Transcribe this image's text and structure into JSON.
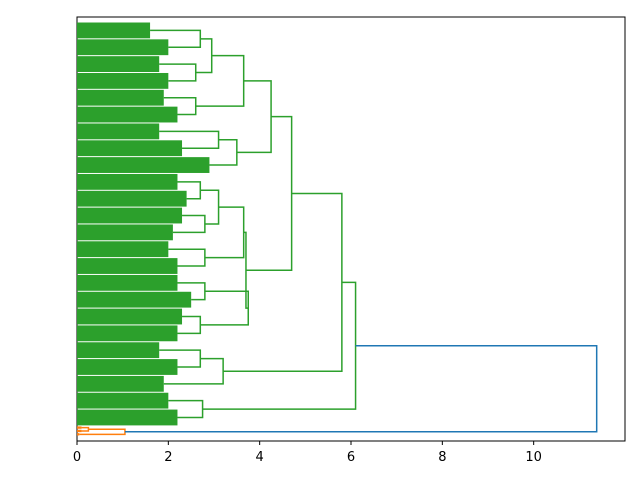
{
  "chart_data": {
    "type": "dendrogram",
    "xlim": [
      0,
      12
    ],
    "xticks": [
      0,
      2,
      4,
      6,
      8,
      10
    ],
    "tree": {
      "height": 11.38,
      "color": "#1f77b4",
      "children": [
        {
          "height": 6.1,
          "color": "#2ca02c",
          "children": [
            {
              "height": 5.8,
              "children": [
                {
                  "height": 4.7,
                  "children": [
                    {
                      "height": 4.25,
                      "children": [
                        {
                          "height": 3.65,
                          "children": [
                            {
                              "height": 2.95,
                              "children": [
                                {
                                  "height": 2.7,
                                  "children": [
                                    {
                                      "height": 1.6,
                                      "n": 10
                                    },
                                    {
                                      "height": 2.0,
                                      "n": 10
                                    }
                                  ]
                                },
                                {
                                  "height": 2.6,
                                  "children": [
                                    {
                                      "height": 1.8,
                                      "n": 10
                                    },
                                    {
                                      "height": 2.0,
                                      "n": 10
                                    }
                                  ]
                                }
                              ]
                            },
                            {
                              "height": 2.6,
                              "children": [
                                {
                                  "height": 1.9,
                                  "n": 10
                                },
                                {
                                  "height": 2.2,
                                  "n": 10
                                }
                              ]
                            }
                          ]
                        },
                        {
                          "height": 3.5,
                          "children": [
                            {
                              "height": 3.1,
                              "children": [
                                {
                                  "height": 1.8,
                                  "n": 10
                                },
                                {
                                  "height": 2.3,
                                  "n": 10
                                }
                              ]
                            },
                            {
                              "height": 2.9,
                              "n": 10
                            }
                          ]
                        }
                      ]
                    },
                    {
                      "height": 3.7,
                      "children": [
                        {
                          "height": 3.65,
                          "children": [
                            {
                              "height": 3.1,
                              "children": [
                                {
                                  "height": 2.7,
                                  "children": [
                                    {
                                      "height": 2.2,
                                      "n": 10
                                    },
                                    {
                                      "height": 2.4,
                                      "n": 10
                                    }
                                  ]
                                },
                                {
                                  "height": 2.8,
                                  "children": [
                                    {
                                      "height": 2.3,
                                      "n": 10
                                    },
                                    {
                                      "height": 2.1,
                                      "n": 10
                                    }
                                  ]
                                }
                              ]
                            },
                            {
                              "height": 2.8,
                              "children": [
                                {
                                  "height": 2.0,
                                  "n": 10
                                },
                                {
                                  "height": 2.2,
                                  "n": 10
                                }
                              ]
                            }
                          ]
                        },
                        {
                          "height": 3.75,
                          "children": [
                            {
                              "height": 2.8,
                              "children": [
                                {
                                  "height": 2.2,
                                  "n": 10
                                },
                                {
                                  "height": 2.5,
                                  "n": 10
                                }
                              ]
                            },
                            {
                              "height": 2.7,
                              "children": [
                                {
                                  "height": 2.3,
                                  "n": 10
                                },
                                {
                                  "height": 2.2,
                                  "n": 10
                                }
                              ]
                            }
                          ]
                        }
                      ]
                    }
                  ]
                },
                {
                  "height": 3.2,
                  "children": [
                    {
                      "height": 2.7,
                      "children": [
                        {
                          "height": 1.8,
                          "n": 10
                        },
                        {
                          "height": 2.2,
                          "n": 10
                        }
                      ]
                    },
                    {
                      "height": 1.9,
                      "n": 10
                    }
                  ]
                }
              ]
            },
            {
              "height": 2.75,
              "children": [
                {
                  "height": 2.0,
                  "n": 10
                },
                {
                  "height": 2.2,
                  "n": 10
                }
              ]
            }
          ]
        },
        {
          "height": 1.05,
          "color": "#ff7f0e",
          "children": [
            {
              "height": 0.25,
              "children": [
                {
                  "height": 0.1,
                  "n": 2
                },
                {
                  "height": 0.1,
                  "n": 2
                }
              ]
            },
            {
              "height": 0.05,
              "n": 2
            }
          ]
        }
      ]
    }
  }
}
